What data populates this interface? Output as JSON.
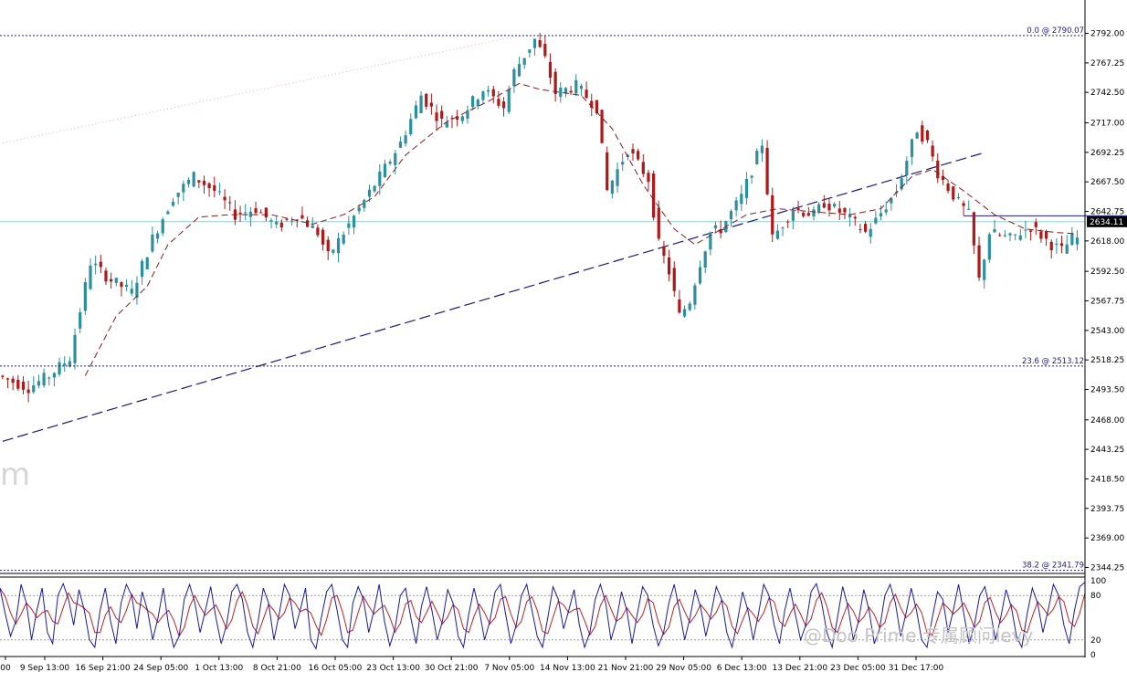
{
  "chart_data": [
    {
      "type": "candlestick",
      "panel": "price",
      "y_ticks": [
        "2792.00",
        "2767.25",
        "2742.50",
        "2717.00",
        "2692.25",
        "2667.50",
        "2642.75",
        "2618.00",
        "2592.50",
        "2567.75",
        "2543.00",
        "2518.25",
        "2493.50",
        "2468.00",
        "2443.25",
        "2418.50",
        "2393.75",
        "2369.00",
        "2344.25"
      ],
      "ylim": [
        2340,
        2797
      ],
      "x_ticks": [
        "00",
        "9 Sep 13:00",
        "16 Sep 21:00",
        "24 Sep 05:00",
        "1 Oct 13:00",
        "8 Oct 21:00",
        "16 Oct 05:00",
        "23 Oct 13:00",
        "30 Oct 21:00",
        "7 Nov 05:00",
        "14 Nov 13:00",
        "21 Nov 21:00",
        "29 Nov 05:00",
        "6 Dec 13:00",
        "13 Dec 21:00",
        "23 Dec 05:00",
        "31 Dec 17:00"
      ],
      "current_price": "2634.11",
      "colors": {
        "up": "#2a8fa0",
        "down": "#b01818",
        "ma": "#8b1a1a",
        "level": "#20206e",
        "current": "#8fcfcf"
      },
      "fib_levels": [
        {
          "label": "0.0 @ 2790.07",
          "price": 2790.07
        },
        {
          "label": "23.6 @ 2513.12",
          "price": 2513.12
        },
        {
          "label": "38.2 @ 2341.79",
          "price": 2341.79
        }
      ],
      "path": [
        [
          0,
          2505
        ],
        [
          6,
          2495
        ],
        [
          10,
          2505
        ],
        [
          14,
          2520
        ],
        [
          18,
          2600
        ],
        [
          22,
          2585
        ],
        [
          26,
          2575
        ],
        [
          30,
          2620
        ],
        [
          34,
          2655
        ],
        [
          38,
          2672
        ],
        [
          42,
          2660
        ],
        [
          46,
          2640
        ],
        [
          50,
          2645
        ],
        [
          54,
          2630
        ],
        [
          58,
          2640
        ],
        [
          62,
          2625
        ],
        [
          64,
          2605
        ],
        [
          66,
          2618
        ],
        [
          70,
          2645
        ],
        [
          74,
          2672
        ],
        [
          78,
          2700
        ],
        [
          82,
          2740
        ],
        [
          86,
          2718
        ],
        [
          90,
          2725
        ],
        [
          94,
          2745
        ],
        [
          98,
          2730
        ],
        [
          100,
          2760
        ],
        [
          104,
          2787
        ],
        [
          106,
          2770
        ],
        [
          108,
          2742
        ],
        [
          112,
          2748
        ],
        [
          116,
          2730
        ],
        [
          118,
          2660
        ],
        [
          122,
          2695
        ],
        [
          126,
          2670
        ],
        [
          128,
          2615
        ],
        [
          130,
          2592
        ],
        [
          132,
          2555
        ],
        [
          134,
          2568
        ],
        [
          136,
          2600
        ],
        [
          138,
          2625
        ],
        [
          140,
          2628
        ],
        [
          144,
          2655
        ],
        [
          148,
          2700
        ],
        [
          150,
          2620
        ],
        [
          154,
          2645
        ],
        [
          158,
          2640
        ],
        [
          160,
          2650
        ],
        [
          164,
          2640
        ],
        [
          168,
          2625
        ],
        [
          170,
          2635
        ],
        [
          174,
          2660
        ],
        [
          178,
          2712
        ],
        [
          180,
          2700
        ],
        [
          182,
          2675
        ],
        [
          186,
          2650
        ],
        [
          188,
          2640
        ],
        [
          190,
          2585
        ],
        [
          192,
          2625
        ],
        [
          196,
          2620
        ],
        [
          200,
          2630
        ],
        [
          204,
          2615
        ],
        [
          206,
          2610
        ],
        [
          208,
          2620
        ]
      ],
      "ma_path": [
        [
          16,
          2505
        ],
        [
          22,
          2555
        ],
        [
          28,
          2580
        ],
        [
          32,
          2615
        ],
        [
          38,
          2638
        ],
        [
          44,
          2640
        ],
        [
          52,
          2640
        ],
        [
          60,
          2632
        ],
        [
          66,
          2640
        ],
        [
          72,
          2655
        ],
        [
          78,
          2690
        ],
        [
          86,
          2718
        ],
        [
          94,
          2735
        ],
        [
          100,
          2750
        ],
        [
          104,
          2745
        ],
        [
          112,
          2740
        ],
        [
          118,
          2712
        ],
        [
          124,
          2665
        ],
        [
          130,
          2628
        ],
        [
          134,
          2615
        ],
        [
          138,
          2625
        ],
        [
          144,
          2640
        ],
        [
          150,
          2645
        ],
        [
          158,
          2642
        ],
        [
          164,
          2640
        ],
        [
          170,
          2645
        ],
        [
          176,
          2672
        ],
        [
          180,
          2678
        ],
        [
          186,
          2660
        ],
        [
          192,
          2640
        ],
        [
          198,
          2628
        ],
        [
          204,
          2625
        ],
        [
          208,
          2624
        ]
      ],
      "trendlines": [
        {
          "style": "long-dash",
          "from": [
            0,
            2450
          ],
          "to": [
            190,
            2692
          ]
        },
        {
          "style": "solid",
          "from": [
            186,
            2639
          ],
          "to": [
            220,
            2639
          ]
        },
        {
          "style": "dotted",
          "from": [
            0,
            2700
          ],
          "to": [
            100,
            2790
          ]
        }
      ]
    },
    {
      "type": "line",
      "panel": "stochastic",
      "y_ticks": [
        "100",
        "80",
        "20",
        "0"
      ],
      "ylim": [
        0,
        100
      ],
      "levels": [
        80,
        20
      ],
      "colors": {
        "main": "#1a1aa0",
        "signal": "#c02020"
      },
      "values": [
        90,
        55,
        25,
        45,
        95,
        70,
        20,
        60,
        90,
        30,
        15,
        80,
        96,
        75,
        40,
        88,
        60,
        20,
        10,
        60,
        90,
        45,
        15,
        70,
        95,
        80,
        35,
        85,
        60,
        20,
        50,
        90,
        40,
        10,
        25,
        75,
        95,
        70,
        30,
        60,
        92,
        50,
        15,
        40,
        85,
        95,
        75,
        30,
        10,
        45,
        90,
        70,
        20,
        55,
        95,
        80,
        35,
        60,
        90,
        20,
        8,
        50,
        85,
        95,
        60,
        20,
        10,
        70,
        92,
        75,
        30,
        60,
        95,
        45,
        12,
        35,
        80,
        90,
        50,
        15,
        65,
        92,
        60,
        20,
        45,
        88,
        70,
        25,
        10,
        55,
        90,
        60,
        20,
        45,
        85,
        95,
        55,
        15,
        40,
        80,
        95,
        60,
        25,
        10,
        50,
        92,
        75,
        35,
        60,
        88,
        40,
        10,
        30,
        75,
        95,
        70,
        20,
        45,
        85,
        60,
        15,
        55,
        92,
        80,
        40,
        12,
        30,
        70,
        95,
        60,
        20,
        50,
        88,
        65,
        25,
        55,
        92,
        75,
        30,
        10,
        45,
        85,
        60,
        20,
        55,
        95,
        80,
        40,
        15,
        60,
        90,
        55,
        20,
        40,
        85,
        96,
        70,
        30,
        10,
        50,
        92,
        65,
        20,
        45,
        88,
        60,
        15,
        35,
        80,
        95,
        70,
        25,
        55,
        90,
        60,
        20,
        10,
        50,
        85,
        75,
        30,
        60,
        95,
        55,
        15,
        40,
        80,
        92,
        60,
        20,
        50,
        88,
        65,
        25,
        10,
        55,
        90,
        70,
        30,
        60,
        95,
        80,
        40,
        15,
        60,
        92,
        98
      ]
    }
  ],
  "watermark": "@Doo Prime 专属顾问levy"
}
